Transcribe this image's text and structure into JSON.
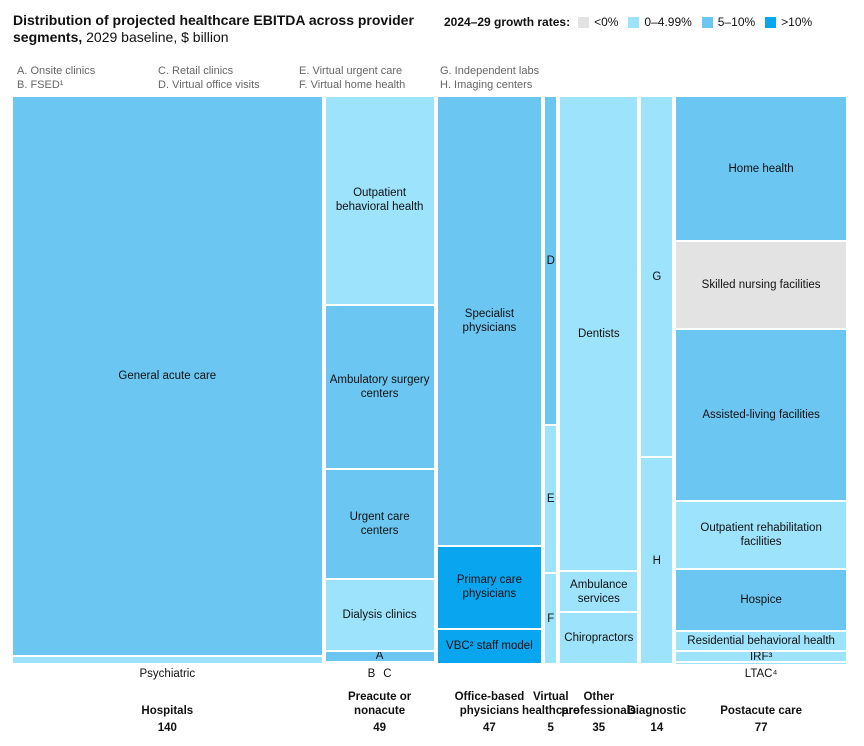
{
  "chart_data": {
    "type": "mekko",
    "title": "Distribution of projected healthcare EBITDA across provider segments,",
    "subtitle": "2029 baseline, $ billion",
    "legend_title": "2024–29 growth rates:",
    "legend": [
      {
        "name": "<0%",
        "color": "#e3e3e3"
      },
      {
        "name": "0–4.99%",
        "color": "#9de3fb"
      },
      {
        "name": "5–10%",
        "color": "#6cc6f2"
      },
      {
        "name": ">10%",
        "color": "#0aa5ef"
      }
    ],
    "key": [
      "A. Onsite clinics",
      "B. FSED¹",
      "C. Retail clinics",
      "D. Virtual office visits",
      "E. Virtual urgent care",
      "F. Virtual home health",
      "G. Independent labs",
      "H. Imaging centers"
    ],
    "columns": [
      {
        "name": "Hospitals",
        "total": 140,
        "segments": [
          {
            "label": "General acute care",
            "value": 138,
            "color": "#6cc6f2"
          },
          {
            "label": "Psychiatric",
            "value": 2,
            "color": "#9de3fb",
            "label_position": "below"
          }
        ]
      },
      {
        "name": "Preacute or nonacute",
        "total": 49,
        "segments": [
          {
            "label": "Outpatient behavioral health",
            "value": 18,
            "color": "#9de3fb"
          },
          {
            "label": "Ambulatory surgery centers",
            "value": 14.2,
            "color": "#6cc6f2"
          },
          {
            "label": "Urgent care centers",
            "value": 9.5,
            "color": "#6cc6f2"
          },
          {
            "label": "Dialysis clinics",
            "value": 6.2,
            "color": "#9de3fb"
          },
          {
            "label": "A",
            "value": 0.9,
            "color": "#6cc6f2"
          },
          {
            "label": "B",
            "value": 0.1,
            "color": "#6cc6f2",
            "label_position": "below"
          },
          {
            "label": "C",
            "value": 0.1,
            "color": "#6cc6f2",
            "label_position": "below"
          }
        ]
      },
      {
        "name": "Office-based physicians",
        "total": 47,
        "segments": [
          {
            "label": "Specialist physicians",
            "value": 37.2,
            "color": "#6cc6f2"
          },
          {
            "label": "Primary care physicians",
            "value": 6.9,
            "color": "#0aa5ef"
          },
          {
            "label": "VBC² staff model",
            "value": 2.9,
            "color": "#0aa5ef"
          }
        ]
      },
      {
        "name": "Virtual healthcare",
        "total": 5,
        "segments": [
          {
            "label": "D",
            "value": 2.9,
            "color": "#6cc6f2"
          },
          {
            "label": "E",
            "value": 1.3,
            "color": "#9de3fb"
          },
          {
            "label": "F",
            "value": 0.8,
            "color": "#9de3fb"
          }
        ]
      },
      {
        "name": "Other professionals",
        "total": 35,
        "segments": [
          {
            "label": "Dentists",
            "value": 29.3,
            "color": "#9de3fb"
          },
          {
            "label": "Ambulance services",
            "value": 2.5,
            "color": "#9de3fb"
          },
          {
            "label": "Chiropractors",
            "value": 3.2,
            "color": "#9de3fb"
          }
        ]
      },
      {
        "name": "Diagnostic",
        "total": 14,
        "segments": [
          {
            "label": "G",
            "value": 8.9,
            "color": "#9de3fb"
          },
          {
            "label": "H",
            "value": 5.1,
            "color": "#9de3fb"
          }
        ]
      },
      {
        "name": "Postacute care",
        "total": 77,
        "segments": [
          {
            "label": "Home health",
            "value": 19.7,
            "color": "#6cc6f2"
          },
          {
            "label": "Skilled nursing facilities",
            "value": 11.9,
            "color": "#e3e3e3"
          },
          {
            "label": "Assisted-living facilities",
            "value": 23.3,
            "color": "#6cc6f2"
          },
          {
            "label": "Outpatient rehabilitation facilities",
            "value": 9.2,
            "color": "#9de3fb"
          },
          {
            "label": "Hospice",
            "value": 8.4,
            "color": "#6cc6f2"
          },
          {
            "label": "Residential behavioral health",
            "value": 2.8,
            "color": "#9de3fb"
          },
          {
            "label": "IRF³",
            "value": 1.4,
            "color": "#9de3fb"
          },
          {
            "label": "LTAC⁴",
            "value": 0.3,
            "color": "#9de3fb",
            "label_position": "below"
          }
        ]
      }
    ]
  }
}
